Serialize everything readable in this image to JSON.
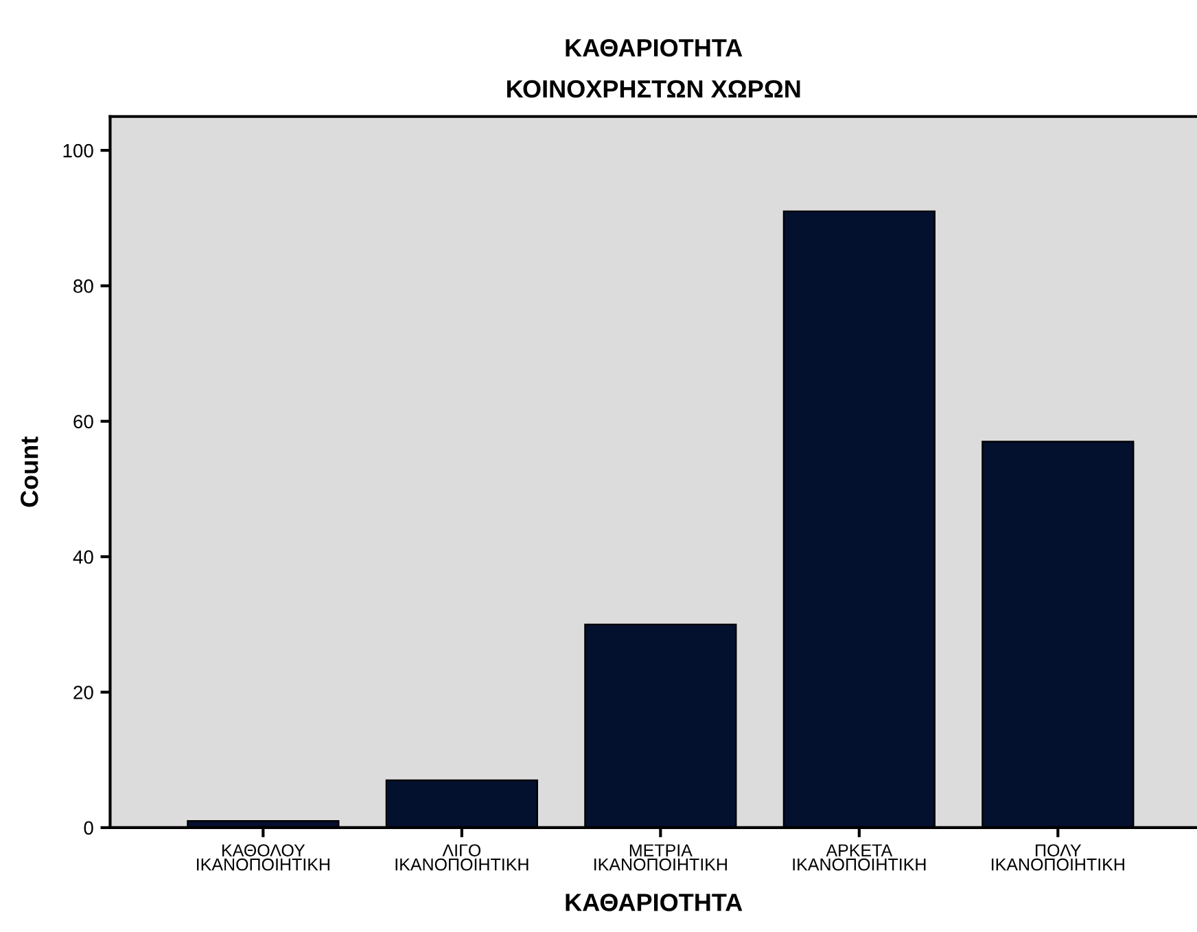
{
  "chart_data": {
    "type": "bar",
    "title": "ΚΑΘΑΡΙΟΤΗΤΑ\nΚΟΙΝΟΧΡΗΣΤΩΝ ΧΩΡΩΝ",
    "xlabel": "ΚΑΘΑΡΙΟΤΗΤΑ",
    "ylabel": "Count",
    "categories": [
      "ΚΑΘΟΛΟΥ\nΙΚΑΝΟΠΟΙΗΤΙΚΗ",
      "ΛΙΓΟ\nΙΚΑΝΟΠΟΙΗΤΙΚΗ",
      "ΜΕΤΡΙΑ\nΙΚΑΝΟΠΟΙΗΤΙΚΗ",
      "ΑΡΚΕΤΑ\nΙΚΑΝΟΠΟΙΗΤΙΚΗ",
      "ΠΟΛΥ\nΙΚΑΝΟΠΟΙΗΤΙΚΗ"
    ],
    "values": [
      1,
      7,
      30,
      91,
      57
    ],
    "color": "#03102e",
    "ylim": [
      0,
      105
    ],
    "yticks": [
      0,
      20,
      40,
      60,
      80,
      100
    ],
    "grid": false,
    "legend": false
  }
}
